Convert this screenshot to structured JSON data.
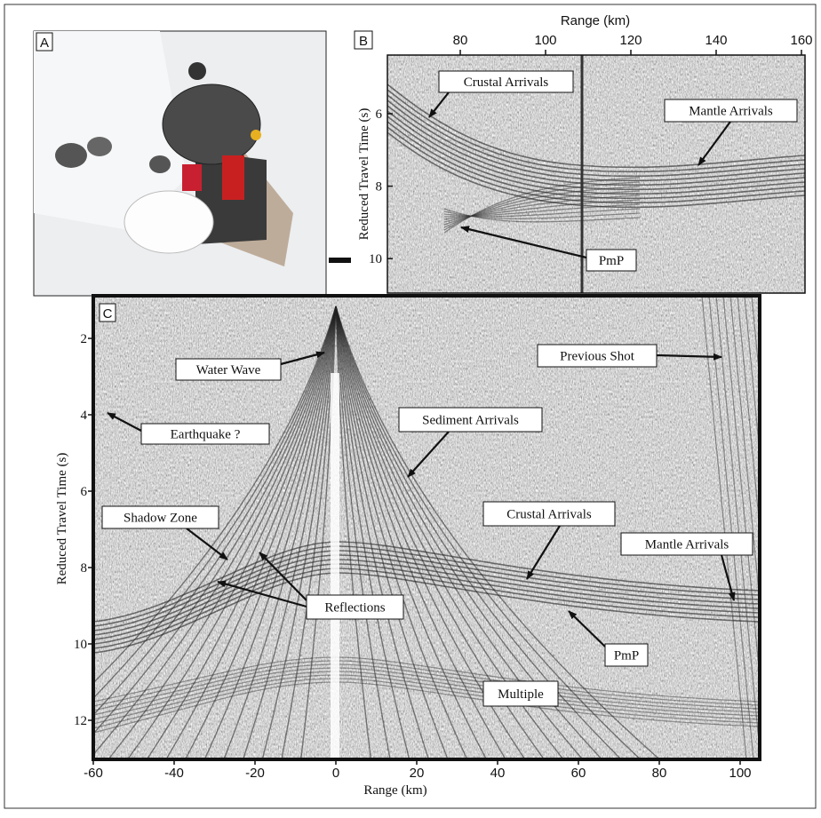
{
  "panel_a": {
    "label": "A"
  },
  "panel_b": {
    "label": "B",
    "x_axis_label": "Range (km)",
    "y_axis_label": "Reduced Travel Time (s)",
    "x_ticks": [
      80,
      100,
      120,
      140,
      160
    ],
    "y_ticks": [
      6,
      8,
      10
    ],
    "annotations": [
      "Crustal Arrivals",
      "Mantle Arrivals",
      "PmP"
    ]
  },
  "panel_c": {
    "label": "C",
    "x_axis_label": "Range (km)",
    "y_axis_label": "Reduced Travel Time (s)",
    "x_ticks": [
      -60,
      -40,
      -20,
      0,
      20,
      40,
      60,
      80,
      100
    ],
    "y_ticks": [
      2,
      4,
      6,
      8,
      10,
      12
    ],
    "annotations": [
      "Water Wave",
      "Previous Shot",
      "Earthquake ?",
      "Sediment Arrivals",
      "Shadow Zone",
      "Crustal Arrivals",
      "Mantle Arrivals",
      "Reflections",
      "PmP",
      "Multiple"
    ]
  }
}
